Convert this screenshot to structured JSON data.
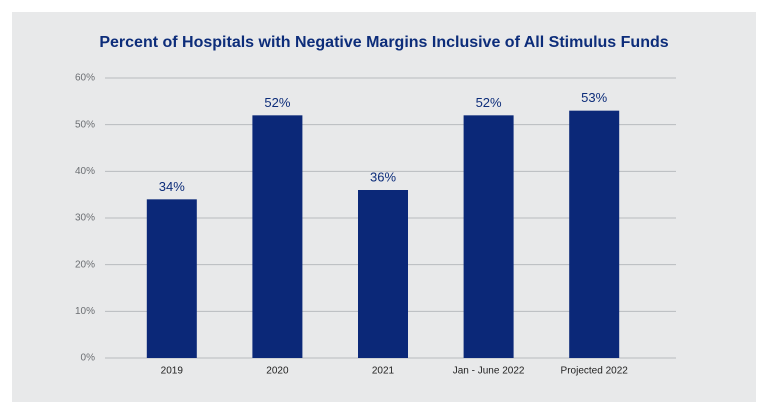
{
  "chart_data": {
    "type": "bar",
    "title": "Percent of Hospitals with Negative Margins Inclusive of All Stimulus Funds",
    "categories": [
      "2019",
      "2020",
      "2021",
      "Jan - June 2022",
      "Projected 2022"
    ],
    "values": [
      34,
      52,
      36,
      52,
      53
    ],
    "value_labels": [
      "34%",
      "52%",
      "36%",
      "52%",
      "53%"
    ],
    "color": "#0b2878",
    "ylim": [
      0,
      60
    ],
    "yticks": [
      {
        "value": 0,
        "label": "0%"
      },
      {
        "value": 10,
        "label": "10%"
      },
      {
        "value": 20,
        "label": "20%"
      },
      {
        "value": 30,
        "label": "30%"
      },
      {
        "value": 40,
        "label": "40%"
      },
      {
        "value": 50,
        "label": "50%"
      },
      {
        "value": 60,
        "label": "60%"
      }
    ],
    "grid": true
  }
}
